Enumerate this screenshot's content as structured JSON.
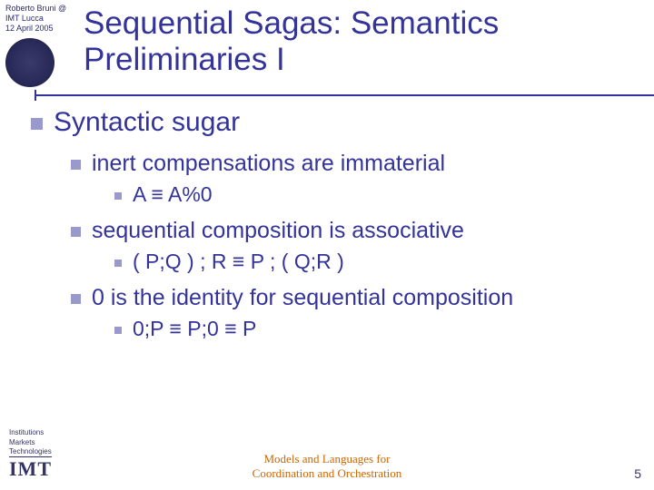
{
  "meta": {
    "author": "Roberto Bruni @",
    "place": "IMT Lucca",
    "date": "12 April 2005"
  },
  "title": "Sequential Sagas: Semantics Preliminaries I",
  "content": {
    "lvl1": "Syntactic sugar",
    "items": [
      {
        "lvl2": "inert compensations are immaterial",
        "lvl3": "A ≡ A%0"
      },
      {
        "lvl2": "sequential composition is associative",
        "lvl3": "( P;Q ) ; R ≡ P ; ( Q;R )"
      },
      {
        "lvl2": "0 is the identity for sequential composition",
        "lvl3": "0;P ≡ P;0 ≡ P"
      }
    ]
  },
  "footer": {
    "inst1": "Institutions",
    "inst2": "Markets",
    "inst3": "Technologies",
    "imt": "IMT",
    "center1": "Models and Languages for",
    "center2": "Coordination and Orchestration",
    "page": "5"
  }
}
